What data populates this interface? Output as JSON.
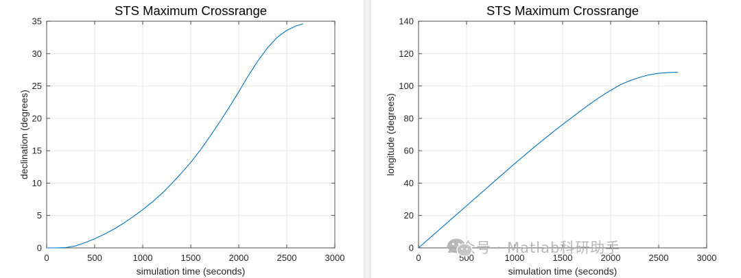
{
  "colors": {
    "line": "#0072BD",
    "axis": "#262626",
    "grid": "#e6e6e6",
    "background": "#ffffff"
  },
  "watermark": {
    "text": "公众号 · Matlab科研助手",
    "icon": "wechat-icon"
  },
  "chart_data": [
    {
      "type": "line",
      "title": "STS Maximum Crossrange",
      "xlabel": "simulation time (seconds)",
      "ylabel": "declination (degrees)",
      "xlim": [
        0,
        3000
      ],
      "ylim": [
        0,
        35
      ],
      "xticks": [
        "0",
        "500",
        "1000",
        "1500",
        "2000",
        "2500",
        "3000"
      ],
      "yticks": [
        "0",
        "5",
        "10",
        "15",
        "20",
        "25",
        "30",
        "35"
      ],
      "grid": true,
      "x": [
        0,
        100,
        200,
        300,
        400,
        500,
        600,
        700,
        800,
        900,
        1000,
        1100,
        1200,
        1300,
        1400,
        1500,
        1600,
        1700,
        1800,
        1900,
        2000,
        2100,
        2200,
        2300,
        2400,
        2500,
        2600,
        2670
      ],
      "y": [
        0,
        0,
        0.05,
        0.3,
        0.8,
        1.4,
        2.1,
        2.9,
        3.8,
        4.8,
        5.9,
        7.1,
        8.4,
        9.9,
        11.5,
        13.2,
        15.1,
        17.2,
        19.4,
        21.7,
        24.1,
        26.6,
        28.9,
        30.9,
        32.5,
        33.6,
        34.3,
        34.6
      ]
    },
    {
      "type": "line",
      "title": "STS Maximum Crossrange",
      "xlabel": "simulation time (seconds)",
      "ylabel": "longitude (degrees)",
      "xlim": [
        0,
        3000
      ],
      "ylim": [
        0,
        140
      ],
      "xticks": [
        "0",
        "500",
        "1000",
        "1500",
        "2000",
        "2500",
        "3000"
      ],
      "yticks": [
        "0",
        "20",
        "40",
        "60",
        "80",
        "100",
        "120",
        "140"
      ],
      "grid": true,
      "x": [
        0,
        100,
        200,
        300,
        400,
        500,
        600,
        700,
        800,
        900,
        1000,
        1100,
        1200,
        1300,
        1400,
        1500,
        1600,
        1700,
        1800,
        1900,
        2000,
        2100,
        2200,
        2300,
        2400,
        2500,
        2600,
        2700
      ],
      "y": [
        0,
        5.2,
        10.4,
        15.6,
        20.8,
        26,
        31.2,
        36.4,
        41.6,
        46.8,
        52,
        57,
        62,
        66.8,
        71.6,
        76.2,
        80.7,
        85.2,
        89.5,
        93.6,
        97.3,
        100.7,
        103.3,
        105.3,
        106.9,
        107.8,
        108.3,
        108.5
      ]
    }
  ]
}
